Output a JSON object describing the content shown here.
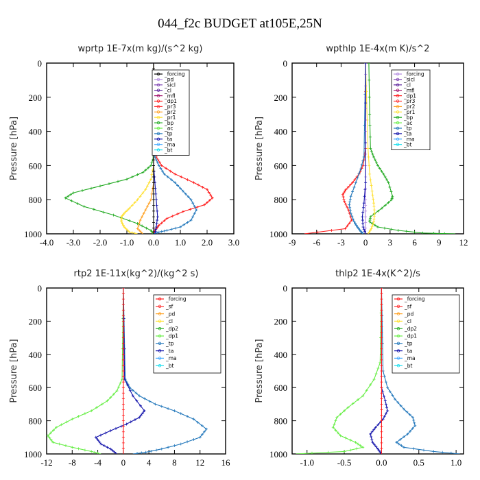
{
  "figure": {
    "title": "044_f2c  BUDGET at105E,25N"
  },
  "chart_data": [
    {
      "type": "line",
      "title": "wprtp  1E-7x(m kg)/(s^2 kg)",
      "ylabel": "Pressure [hPa]",
      "xlim": [
        -4,
        3
      ],
      "ylim": [
        1000,
        0
      ],
      "xticks": [
        "-4.0",
        "-3.0",
        "-2.0",
        "-1.0",
        "0.0",
        "1.0",
        "2.0",
        "3.0"
      ],
      "yticks": [
        "0",
        "200",
        "400",
        "600",
        "800",
        "1000"
      ],
      "legend_position": "top-right",
      "legend": [
        {
          "name": "_forcing",
          "color": "#000000"
        },
        {
          "name": "_pd",
          "color": "#b28ae0"
        },
        {
          "name": "_sicl",
          "color": "#7b3fb0"
        },
        {
          "name": "_cl",
          "color": "#5a1f9a"
        },
        {
          "name": "_mfl",
          "color": "#a0106a"
        },
        {
          "name": "_dp1",
          "color": "#ff1a1a"
        },
        {
          "name": "_pr3",
          "color": "#ff3030"
        },
        {
          "name": "_pr2",
          "color": "#ffa020"
        },
        {
          "name": "_pr1",
          "color": "#ffe030"
        },
        {
          "name": "_bp",
          "color": "#22aa22"
        },
        {
          "name": "_ac",
          "color": "#66ee44"
        },
        {
          "name": "_tp",
          "color": "#2277bb"
        },
        {
          "name": "_ta",
          "color": "#1111aa"
        },
        {
          "name": "_ma",
          "color": "#44aaff"
        },
        {
          "name": "_bt",
          "color": "#11ddee"
        }
      ],
      "series": [
        {
          "color": "#22aa22",
          "x": [
            0,
            0,
            0,
            0,
            -0.1,
            -0.4,
            -1.0,
            -2.0,
            -3.0,
            -3.3,
            -2.6,
            -1.5,
            -0.6,
            -0.1,
            0
          ],
          "y": [
            0,
            200,
            400,
            550,
            600,
            640,
            680,
            720,
            760,
            790,
            840,
            890,
            940,
            980,
            1000
          ]
        },
        {
          "color": "#ff1a1a",
          "x": [
            0,
            0,
            0,
            0.1,
            0.3,
            0.8,
            1.5,
            2.0,
            2.2,
            1.9,
            1.1,
            0.5,
            0.2,
            0.05,
            0
          ],
          "y": [
            0,
            200,
            400,
            550,
            600,
            650,
            700,
            740,
            790,
            830,
            870,
            910,
            950,
            980,
            1000
          ]
        },
        {
          "color": "#2277bb",
          "x": [
            0,
            0,
            0.05,
            0.2,
            0.4,
            0.8,
            1.1,
            1.4,
            1.6,
            1.4,
            1.0,
            0.5,
            0.2,
            0
          ],
          "y": [
            0,
            400,
            550,
            600,
            650,
            700,
            750,
            800,
            860,
            920,
            960,
            980,
            990,
            1000
          ]
        },
        {
          "color": "#ffe030",
          "x": [
            0,
            0,
            -0.1,
            -0.3,
            -0.6,
            -0.9,
            -1.1,
            -1.2,
            -1.2,
            -1.1,
            -0.9,
            -0.6
          ],
          "y": [
            0,
            600,
            680,
            740,
            800,
            850,
            880,
            900,
            930,
            960,
            990,
            1000
          ]
        },
        {
          "color": "#ffa020",
          "x": [
            0,
            0,
            -0.1,
            -0.3,
            -0.5,
            -0.6,
            -0.4
          ],
          "y": [
            0,
            700,
            800,
            860,
            920,
            970,
            1000
          ]
        },
        {
          "color": "#1111aa",
          "x": [
            0,
            0,
            0.05,
            0.1,
            0.15,
            0.1,
            0.05
          ],
          "y": [
            0,
            600,
            700,
            800,
            900,
            960,
            1000
          ]
        },
        {
          "color": "#000000",
          "x": [
            0,
            0,
            0,
            0,
            0,
            0,
            0,
            0,
            0,
            0,
            0
          ],
          "y": [
            0,
            100,
            200,
            300,
            400,
            500,
            600,
            700,
            800,
            900,
            1000
          ]
        }
      ]
    },
    {
      "type": "line",
      "title": "wpthlp  1E-4x(m K)/s^2",
      "ylabel": "Pressure [hPa]",
      "xlim": [
        -9,
        12
      ],
      "ylim": [
        1000,
        0
      ],
      "xticks": [
        "-9",
        "-6",
        "-3",
        "0",
        "3",
        "6",
        "9",
        "12"
      ],
      "yticks": [
        "0",
        "200",
        "400",
        "600",
        "800",
        "1000"
      ],
      "legend_position": "top-right",
      "legend": [
        {
          "name": "_forcing",
          "color": "#b28ae0"
        },
        {
          "name": "_sicl",
          "color": "#7b3fb0"
        },
        {
          "name": "_cl",
          "color": "#5a1f9a"
        },
        {
          "name": "_mfl",
          "color": "#a0106a"
        },
        {
          "name": "_dp1",
          "color": "#ff1a1a"
        },
        {
          "name": "_pr3",
          "color": "#ff3030"
        },
        {
          "name": "_pr2",
          "color": "#ffa020"
        },
        {
          "name": "_pr1",
          "color": "#ffe030"
        },
        {
          "name": "_bp",
          "color": "#22aa22"
        },
        {
          "name": "_ac",
          "color": "#66ee44"
        },
        {
          "name": "_tp",
          "color": "#2277bb"
        },
        {
          "name": "_ta",
          "color": "#1111aa"
        },
        {
          "name": "_ma",
          "color": "#44aaff"
        },
        {
          "name": "_bt",
          "color": "#11ddee"
        }
      ],
      "series": [
        {
          "color": "#22aa22",
          "x": [
            0.4,
            0.5,
            0.6,
            1.0,
            1.5,
            2.2,
            2.8,
            3.3,
            3.2,
            2.0,
            0.6,
            0.5,
            1.5,
            4,
            7,
            11
          ],
          "y": [
            0,
            300,
            500,
            550,
            600,
            650,
            700,
            780,
            800,
            850,
            900,
            930,
            960,
            980,
            995,
            1000
          ]
        },
        {
          "color": "#ff1a1a",
          "x": [
            0,
            0,
            -0.3,
            -0.8,
            -1.6,
            -2.4,
            -2.8,
            -2.6,
            -2.1,
            -1.7,
            -2.5,
            -7.5
          ],
          "y": [
            0,
            500,
            600,
            650,
            700,
            740,
            770,
            810,
            860,
            920,
            970,
            1000
          ]
        },
        {
          "color": "#2277bb",
          "x": [
            0,
            -0.2,
            -0.6,
            -1.2,
            -1.8,
            -2.0,
            -1.8,
            -1.4,
            -1.0,
            -0.6,
            -0.3
          ],
          "y": [
            0,
            550,
            620,
            700,
            780,
            830,
            880,
            930,
            960,
            985,
            1000
          ]
        },
        {
          "color": "#ffe030",
          "x": [
            0,
            0.3,
            0.5,
            0.8,
            1.0,
            1.1,
            1.0,
            0.7,
            0.3
          ],
          "y": [
            0,
            500,
            650,
            750,
            820,
            880,
            930,
            970,
            1000
          ]
        },
        {
          "color": "#b28ae0",
          "x": [
            0,
            0,
            0,
            0,
            0,
            0,
            0
          ],
          "y": [
            0,
            200,
            400,
            600,
            800,
            900,
            1000
          ]
        },
        {
          "color": "#1111aa",
          "x": [
            0,
            0,
            -0.2,
            -0.4,
            -0.3,
            0
          ],
          "y": [
            0,
            700,
            820,
            900,
            960,
            1000
          ]
        }
      ]
    },
    {
      "type": "line",
      "title": "rtp2  1E-11x(kg^2)/(kg^2 s)",
      "ylabel": "Pressure [hPa]",
      "xlim": [
        -12,
        16
      ],
      "ylim": [
        1000,
        0
      ],
      "xticks": [
        "-12",
        "-8",
        "-4",
        "0",
        "4",
        "8",
        "12",
        "16"
      ],
      "yticks": [
        "0",
        "200",
        "400",
        "600",
        "800",
        "1000"
      ],
      "legend_position": "top-right",
      "legend": [
        {
          "name": "_forcing",
          "color": "#ff1a1a"
        },
        {
          "name": "_sf",
          "color": "#ff3030"
        },
        {
          "name": "_pd",
          "color": "#ffa020"
        },
        {
          "name": "_cl",
          "color": "#ffe030"
        },
        {
          "name": "_dp2",
          "color": "#22aa22"
        },
        {
          "name": "_dp1",
          "color": "#66ee44"
        },
        {
          "name": "_tp",
          "color": "#2277bb"
        },
        {
          "name": "_ta",
          "color": "#1111aa"
        },
        {
          "name": "_ma",
          "color": "#44aaff"
        },
        {
          "name": "_bt",
          "color": "#11ddee"
        }
      ],
      "series": [
        {
          "color": "#66ee44",
          "x": [
            0,
            -0.2,
            -1,
            -2.5,
            -5,
            -8,
            -10.5,
            -11.8,
            -11,
            -8,
            -5,
            -3.5
          ],
          "y": [
            0,
            550,
            620,
            680,
            740,
            790,
            840,
            890,
            930,
            960,
            985,
            1000
          ]
        },
        {
          "color": "#2277bb",
          "x": [
            0,
            0.3,
            1,
            2.5,
            5,
            8,
            11,
            13,
            12,
            9,
            6,
            3.5,
            1.5
          ],
          "y": [
            0,
            550,
            600,
            650,
            700,
            740,
            790,
            850,
            900,
            940,
            970,
            990,
            1000
          ]
        },
        {
          "color": "#1111aa",
          "x": [
            0,
            0.2,
            1.5,
            3.3,
            2.5,
            0.5,
            -2,
            -4.3,
            -3.5,
            -2,
            -1
          ],
          "y": [
            0,
            550,
            650,
            740,
            780,
            820,
            860,
            900,
            940,
            970,
            1000
          ]
        },
        {
          "color": "#ff1a1a",
          "x": [
            0,
            0,
            0,
            0,
            0,
            0,
            0,
            0,
            0,
            0,
            0
          ],
          "y": [
            0,
            100,
            200,
            300,
            400,
            500,
            600,
            700,
            800,
            900,
            1000
          ]
        }
      ]
    },
    {
      "type": "line",
      "title": "thlp2  1E-4x(K^2)/s",
      "ylabel": "Pressure [hPa]",
      "xlim": [
        -1.2,
        1.1
      ],
      "ylim": [
        1000,
        0
      ],
      "xticks": [
        "-1.0",
        "-0.5",
        "0.0",
        "0.5",
        "1.0"
      ],
      "yticks": [
        "0",
        "200",
        "400",
        "600",
        "800",
        "1000"
      ],
      "legend_position": "top-right",
      "legend": [
        {
          "name": "_forcing",
          "color": "#ff1a1a"
        },
        {
          "name": "_sf",
          "color": "#ff3030"
        },
        {
          "name": "_pd",
          "color": "#ffa020"
        },
        {
          "name": "_cl",
          "color": "#ffe030"
        },
        {
          "name": "_dp2",
          "color": "#22aa22"
        },
        {
          "name": "_dp1",
          "color": "#66ee44"
        },
        {
          "name": "_tp",
          "color": "#2277bb"
        },
        {
          "name": "_ta",
          "color": "#1111aa"
        },
        {
          "name": "_ma",
          "color": "#44aaff"
        },
        {
          "name": "_bt",
          "color": "#11ddee"
        }
      ],
      "series": [
        {
          "color": "#66ee44",
          "x": [
            0,
            -0.02,
            -0.1,
            -0.25,
            -0.45,
            -0.6,
            -0.65,
            -0.55,
            -0.35,
            -0.25,
            -0.5,
            -1.15
          ],
          "y": [
            0,
            450,
            550,
            650,
            720,
            780,
            840,
            890,
            930,
            960,
            985,
            1000
          ]
        },
        {
          "color": "#2277bb",
          "x": [
            0,
            0.02,
            0.08,
            0.18,
            0.3,
            0.42,
            0.45,
            0.35,
            0.2,
            0.3,
            0.7,
            1.05
          ],
          "y": [
            0,
            500,
            600,
            670,
            730,
            780,
            830,
            880,
            930,
            960,
            985,
            1000
          ]
        },
        {
          "color": "#1111aa",
          "x": [
            0,
            0,
            0.05,
            0.08,
            0.02,
            -0.08,
            -0.15,
            -0.12,
            -0.05,
            0
          ],
          "y": [
            0,
            600,
            680,
            740,
            790,
            840,
            880,
            930,
            970,
            1000
          ]
        },
        {
          "color": "#ff1a1a",
          "x": [
            0,
            0,
            0,
            0,
            0,
            0,
            0,
            0,
            0,
            0,
            0
          ],
          "y": [
            0,
            100,
            200,
            300,
            400,
            500,
            600,
            700,
            800,
            900,
            1000
          ]
        }
      ]
    }
  ]
}
